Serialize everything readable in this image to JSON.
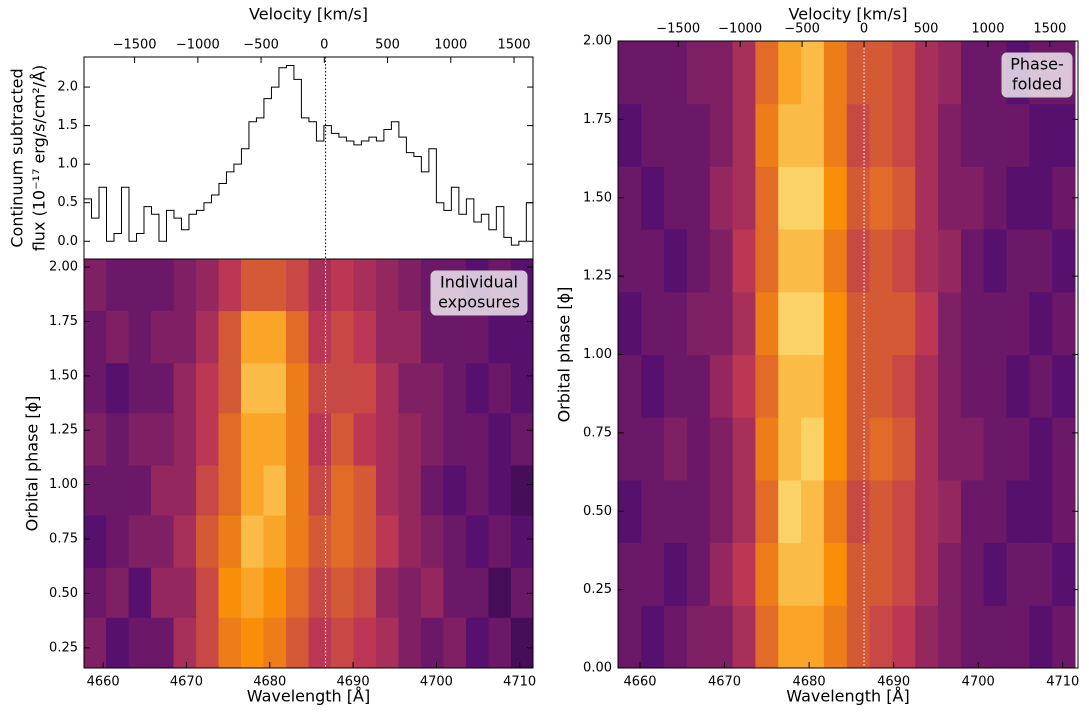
{
  "chart_data": [
    {
      "type": "step",
      "ylabel": [
        "Continuum subtracted",
        "flux (10⁻¹⁷ erg/s/cm²/Å)"
      ],
      "x2label": "Velocity [km/s]",
      "xlim": [
        4657.7,
        4711.6
      ],
      "ylim": [
        -0.23,
        2.39
      ],
      "yticks": [
        {
          "value": 0.0,
          "label": "0.0"
        },
        0.5,
        {
          "value": 1.0,
          "label": "1.0"
        },
        1.5,
        {
          "value": 2.0,
          "label": "2.0"
        }
      ],
      "x2lim": [
        -1900,
        1650
      ],
      "x2ticks": [
        {
          "value": -1500,
          "label": "−1500"
        },
        {
          "value": -1000,
          "label": "−1000"
        },
        {
          "value": -500,
          "label": "−500"
        },
        0,
        500,
        1000,
        1500
      ],
      "ref_wavelength": 4686.7,
      "color": "#000000",
      "x": [
        4658.15,
        4659.05,
        4659.95,
        4660.85,
        4661.75,
        4662.65,
        4663.55,
        4664.45,
        4665.35,
        4666.25,
        4667.15,
        4668.05,
        4668.95,
        4669.85,
        4670.75,
        4671.65,
        4672.55,
        4673.45,
        4674.35,
        4675.25,
        4676.15,
        4677.05,
        4677.95,
        4678.85,
        4679.75,
        4680.65,
        4681.55,
        4682.45,
        4683.35,
        4684.25,
        4685.15,
        4686.05,
        4686.95,
        4687.85,
        4688.75,
        4689.65,
        4690.55,
        4691.45,
        4692.35,
        4693.25,
        4694.15,
        4695.05,
        4695.95,
        4696.85,
        4697.75,
        4698.65,
        4699.55,
        4700.45,
        4701.35,
        4702.25,
        4703.15,
        4704.05,
        4704.95,
        4705.85,
        4706.75,
        4707.65,
        4708.55,
        4709.45,
        4710.35,
        4711.25
      ],
      "values": [
        0.55,
        0.3,
        0.7,
        0.0,
        0.1,
        0.7,
        0.0,
        0.1,
        0.45,
        0.35,
        0.0,
        0.4,
        0.3,
        0.15,
        0.35,
        0.4,
        0.5,
        0.6,
        0.75,
        0.9,
        1.0,
        1.2,
        1.55,
        1.6,
        1.85,
        2.0,
        2.25,
        2.28,
        2.1,
        1.6,
        1.55,
        1.3,
        1.5,
        1.4,
        1.35,
        1.3,
        1.25,
        1.3,
        1.35,
        1.3,
        1.45,
        1.55,
        1.35,
        1.15,
        1.1,
        0.9,
        1.2,
        0.5,
        0.4,
        0.7,
        0.35,
        0.55,
        0.25,
        0.35,
        0.15,
        0.45,
        0.05,
        -0.05,
        0.0,
        0.5
      ]
    },
    {
      "type": "heatmap",
      "xlabel": "Wavelength [Å]",
      "ylabel": "Orbital phase [ϕ]",
      "annotation": [
        "Individual",
        "exposures"
      ],
      "xlim": [
        4657.7,
        4711.6
      ],
      "ylim": [
        0.157,
        2.037
      ],
      "xticks": [
        4660,
        4670,
        4680,
        4690,
        4700,
        4710
      ],
      "yticks": [
        0.25,
        {
          "value": 0.5,
          "label": "0.50"
        },
        0.75,
        {
          "value": 1.0,
          "label": "1.00"
        },
        1.25,
        {
          "value": 1.5,
          "label": "1.50"
        },
        1.75,
        {
          "value": 2.0,
          "label": "2.00"
        }
      ],
      "ref_wavelength": 4686.7,
      "x": [
        4659.0,
        4661.7,
        4664.4,
        4667.1,
        4669.8,
        4672.5,
        4675.2,
        4677.9,
        4680.6,
        4683.3,
        4686.0,
        4688.7,
        4691.4,
        4694.1,
        4696.8,
        4699.5,
        4702.2,
        4704.9,
        4707.6,
        4710.3
      ],
      "y": [
        0.27,
        0.51,
        0.74,
        0.98,
        1.21,
        1.45,
        1.68,
        1.92
      ],
      "z": [
        [
          0.35,
          0.25,
          0.3,
          0.3,
          0.45,
          0.55,
          0.7,
          0.75,
          0.7,
          0.6,
          0.5,
          0.55,
          0.5,
          0.45,
          0.35,
          0.3,
          0.35,
          0.25,
          0.3,
          0.2
        ],
        [
          0.3,
          0.35,
          0.25,
          0.4,
          0.4,
          0.55,
          0.75,
          0.8,
          0.75,
          0.65,
          0.55,
          0.6,
          0.55,
          0.4,
          0.35,
          0.4,
          0.3,
          0.3,
          0.2,
          0.3
        ],
        [
          0.25,
          0.3,
          0.35,
          0.35,
          0.45,
          0.6,
          0.7,
          0.85,
          0.8,
          0.7,
          0.6,
          0.65,
          0.6,
          0.5,
          0.4,
          0.35,
          0.3,
          0.25,
          0.3,
          0.25
        ],
        [
          0.3,
          0.3,
          0.3,
          0.4,
          0.4,
          0.55,
          0.65,
          0.8,
          0.85,
          0.7,
          0.55,
          0.65,
          0.6,
          0.45,
          0.4,
          0.3,
          0.25,
          0.3,
          0.25,
          0.2
        ],
        [
          0.35,
          0.3,
          0.35,
          0.35,
          0.4,
          0.5,
          0.65,
          0.8,
          0.8,
          0.7,
          0.5,
          0.6,
          0.5,
          0.45,
          0.4,
          0.35,
          0.3,
          0.3,
          0.25,
          0.3
        ],
        [
          0.3,
          0.25,
          0.3,
          0.3,
          0.4,
          0.5,
          0.6,
          0.85,
          0.85,
          0.7,
          0.55,
          0.55,
          0.55,
          0.45,
          0.35,
          0.35,
          0.3,
          0.25,
          0.3,
          0.25
        ],
        [
          0.3,
          0.35,
          0.3,
          0.35,
          0.35,
          0.45,
          0.6,
          0.8,
          0.8,
          0.65,
          0.5,
          0.55,
          0.5,
          0.4,
          0.4,
          0.3,
          0.3,
          0.3,
          0.25,
          0.25
        ],
        [
          0.35,
          0.3,
          0.3,
          0.3,
          0.35,
          0.4,
          0.5,
          0.6,
          0.6,
          0.55,
          0.45,
          0.5,
          0.45,
          0.4,
          0.35,
          0.3,
          0.3,
          0.25,
          0.3,
          0.25
        ]
      ]
    },
    {
      "type": "heatmap",
      "xlabel": "Wavelength [Å]",
      "ylabel": "Orbital phase [ϕ]",
      "x2label": "Velocity [km/s]",
      "annotation": [
        "Phase-",
        "folded"
      ],
      "xlim": [
        4657.4,
        4711.8
      ],
      "ylim": [
        0,
        2
      ],
      "xticks": [
        4660,
        4670,
        4680,
        4690,
        4700,
        4710
      ],
      "yticks": [
        {
          "value": 0,
          "label": "0.00"
        },
        0.25,
        {
          "value": 0.5,
          "label": "0.50"
        },
        0.75,
        {
          "value": 1.0,
          "label": "1.00"
        },
        1.25,
        {
          "value": 1.5,
          "label": "1.50"
        },
        1.75,
        {
          "value": 2.0,
          "label": "2.00"
        }
      ],
      "x2lim": [
        -1986,
        1727
      ],
      "x2ticks": [
        {
          "value": -1500,
          "label": "−1500"
        },
        {
          "value": -1000,
          "label": "−1000"
        },
        {
          "value": -500,
          "label": "−500"
        },
        0,
        500,
        1000,
        1500
      ],
      "ref_wavelength": 4686.5,
      "x": [
        4658.8,
        4661.5,
        4664.2,
        4666.9,
        4669.6,
        4672.3,
        4675.0,
        4677.7,
        4680.4,
        4683.1,
        4685.8,
        4688.5,
        4691.2,
        4693.9,
        4696.6,
        4699.3,
        4702.0,
        4704.7,
        4707.4,
        4710.1
      ],
      "y": [
        0.1,
        0.3,
        0.5,
        0.7,
        0.9,
        1.1,
        1.3,
        1.5,
        1.7,
        1.9
      ],
      "z": [
        [
          0.3,
          0.25,
          0.3,
          0.35,
          0.35,
          0.45,
          0.65,
          0.8,
          0.8,
          0.7,
          0.6,
          0.55,
          0.5,
          0.4,
          0.35,
          0.3,
          0.3,
          0.3,
          0.25,
          0.3
        ],
        [
          0.3,
          0.3,
          0.25,
          0.3,
          0.4,
          0.5,
          0.7,
          0.85,
          0.85,
          0.75,
          0.6,
          0.6,
          0.55,
          0.45,
          0.35,
          0.3,
          0.25,
          0.3,
          0.3,
          0.25
        ],
        [
          0.25,
          0.3,
          0.3,
          0.3,
          0.35,
          0.45,
          0.65,
          0.9,
          0.85,
          0.7,
          0.55,
          0.6,
          0.55,
          0.45,
          0.4,
          0.3,
          0.3,
          0.25,
          0.25,
          0.3
        ],
        [
          0.3,
          0.3,
          0.35,
          0.3,
          0.35,
          0.45,
          0.7,
          0.85,
          0.9,
          0.75,
          0.6,
          0.65,
          0.6,
          0.45,
          0.35,
          0.35,
          0.3,
          0.3,
          0.25,
          0.3
        ],
        [
          0.3,
          0.25,
          0.3,
          0.3,
          0.4,
          0.5,
          0.65,
          0.85,
          0.85,
          0.75,
          0.6,
          0.6,
          0.55,
          0.45,
          0.35,
          0.3,
          0.3,
          0.25,
          0.3,
          0.25
        ],
        [
          0.25,
          0.3,
          0.3,
          0.35,
          0.35,
          0.45,
          0.7,
          0.9,
          0.9,
          0.75,
          0.6,
          0.6,
          0.6,
          0.5,
          0.35,
          0.3,
          0.3,
          0.3,
          0.25,
          0.3
        ],
        [
          0.3,
          0.3,
          0.25,
          0.3,
          0.35,
          0.5,
          0.65,
          0.85,
          0.85,
          0.7,
          0.55,
          0.6,
          0.55,
          0.45,
          0.4,
          0.3,
          0.25,
          0.3,
          0.3,
          0.25
        ],
        [
          0.3,
          0.25,
          0.3,
          0.3,
          0.4,
          0.45,
          0.65,
          0.9,
          0.9,
          0.75,
          0.6,
          0.65,
          0.6,
          0.45,
          0.35,
          0.35,
          0.3,
          0.25,
          0.25,
          0.3
        ],
        [
          0.25,
          0.3,
          0.3,
          0.3,
          0.35,
          0.45,
          0.7,
          0.85,
          0.85,
          0.7,
          0.55,
          0.6,
          0.55,
          0.45,
          0.35,
          0.3,
          0.3,
          0.3,
          0.25,
          0.25
        ],
        [
          0.3,
          0.3,
          0.3,
          0.35,
          0.35,
          0.45,
          0.65,
          0.8,
          0.85,
          0.7,
          0.6,
          0.6,
          0.55,
          0.45,
          0.4,
          0.3,
          0.3,
          0.25,
          0.3,
          0.3
        ]
      ]
    }
  ]
}
